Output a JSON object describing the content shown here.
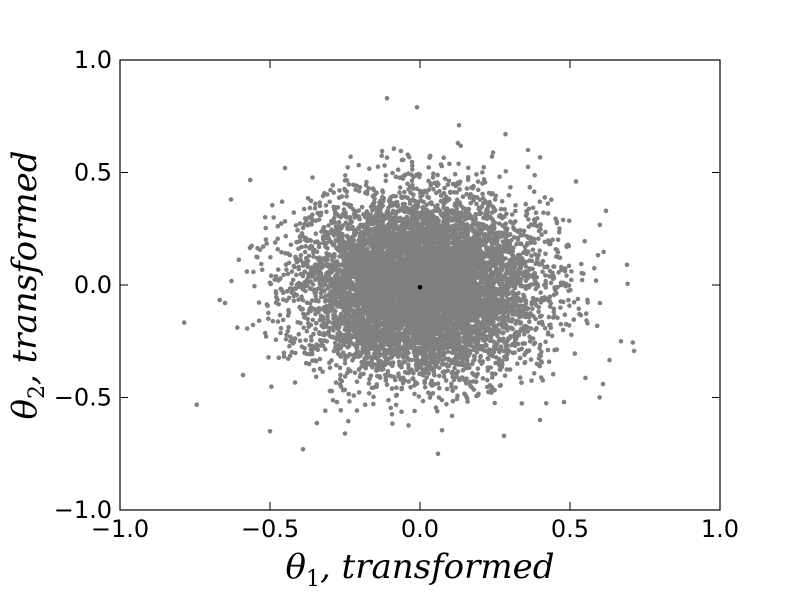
{
  "chart_data": {
    "type": "scatter",
    "title": "",
    "xlabel": {
      "symbol": "θ",
      "sub": "1",
      "text": ", transformed"
    },
    "ylabel": {
      "symbol": "θ",
      "sub": "2",
      "text": ", transformed"
    },
    "xlim": [
      -1.0,
      1.0
    ],
    "ylim": [
      -1.0,
      1.0
    ],
    "xticks": [
      -1.0,
      -0.5,
      0.0,
      0.5,
      1.0
    ],
    "yticks": [
      -1.0,
      -0.5,
      0.0,
      0.5,
      1.0
    ],
    "xtick_labels": [
      "−1.0",
      "−0.5",
      "0.0",
      "0.5",
      "1.0"
    ],
    "ytick_labels": [
      "−1.0",
      "−0.5",
      "0.0",
      "0.5",
      "1.0"
    ],
    "grid": false,
    "series": [
      {
        "color": "#808080",
        "distribution": {
          "kind": "bivariate-normal",
          "mean": [
            0.0,
            0.0
          ],
          "std": [
            0.19,
            0.19
          ],
          "count": 9000
        },
        "outliers": [
          [
            -0.11,
            0.83
          ],
          [
            -0.01,
            0.79
          ],
          [
            0.13,
            0.71
          ],
          [
            -0.65,
            -0.08
          ],
          [
            -0.59,
            -0.4
          ],
          [
            -0.39,
            -0.73
          ],
          [
            -0.5,
            -0.65
          ],
          [
            0.69,
            0.09
          ],
          [
            0.62,
            0.33
          ],
          [
            0.52,
            0.46
          ],
          [
            0.67,
            -0.25
          ],
          [
            0.61,
            -0.44
          ],
          [
            0.06,
            -0.75
          ],
          [
            -0.63,
            0.38
          ],
          [
            0.28,
            -0.67
          ],
          [
            0.4,
            -0.6
          ],
          [
            -0.25,
            -0.66
          ],
          [
            0.48,
            -0.52
          ],
          [
            -0.45,
            0.52
          ],
          [
            0.36,
            0.6
          ]
        ]
      },
      {
        "color": "#000000",
        "points": [
          [
            0.0,
            -0.01
          ]
        ]
      }
    ]
  }
}
